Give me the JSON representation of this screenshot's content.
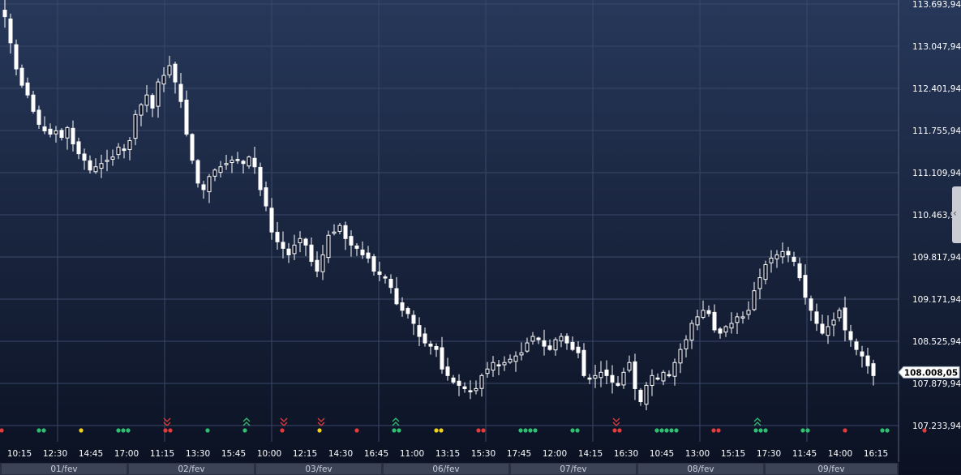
{
  "chart_data": {
    "type": "candlestick",
    "y_axis_labels": [
      "113.693,94",
      "113.047,94",
      "112.401,94",
      "111.755,94",
      "111.109,94",
      "110.463,94",
      "109.817,94",
      "109.171,94",
      "108.525,94",
      "107.879,94",
      "107.233,94"
    ],
    "ylim": [
      107.23394,
      113.69394
    ],
    "current_price": "108.008,05",
    "x_axis_labels": [
      "10:15",
      "12:30",
      "14:45",
      "17:00",
      "11:15",
      "13:30",
      "15:45",
      "10:00",
      "12:15",
      "14:30",
      "16:45",
      "11:00",
      "13:15",
      "15:30",
      "17:45",
      "12:00",
      "14:15",
      "16:30",
      "10:45",
      "13:00",
      "15:15",
      "17:30",
      "11:45",
      "14:00",
      "16:15"
    ],
    "date_labels": [
      "01/fev",
      "02/fev",
      "03/fev",
      "06/fev",
      "07/fev",
      "08/fev",
      "09/fev"
    ],
    "grid": true,
    "closes": [
      113.5,
      113.1,
      112.7,
      112.45,
      112.3,
      112.05,
      111.85,
      111.75,
      111.7,
      111.75,
      111.65,
      111.8,
      111.55,
      111.4,
      111.3,
      111.15,
      111.2,
      111.25,
      111.3,
      111.35,
      111.5,
      111.45,
      111.6,
      112.0,
      112.15,
      112.3,
      112.1,
      112.5,
      112.6,
      112.75,
      112.5,
      112.2,
      111.7,
      111.3,
      110.95,
      110.85,
      111.05,
      111.15,
      111.2,
      111.25,
      111.3,
      111.3,
      111.25,
      111.35,
      111.2,
      110.85,
      110.6,
      110.2,
      110.05,
      109.95,
      109.85,
      110.0,
      110.1,
      110.0,
      109.75,
      109.6,
      109.85,
      110.15,
      110.2,
      110.3,
      110.1,
      110.0,
      109.95,
      109.85,
      109.8,
      109.6,
      109.55,
      109.5,
      109.35,
      109.1,
      109.0,
      108.95,
      108.8,
      108.6,
      108.5,
      108.45,
      108.4,
      108.1,
      108.0,
      107.9,
      107.85,
      107.8,
      107.75,
      107.8,
      108.0,
      108.1,
      108.2,
      108.15,
      108.2,
      108.25,
      108.3,
      108.35,
      108.5,
      108.6,
      108.55,
      108.45,
      108.4,
      108.55,
      108.6,
      108.5,
      108.4,
      108.35,
      108.0,
      107.95,
      108.0,
      108.05,
      108.0,
      107.9,
      107.85,
      108.05,
      108.2,
      107.8,
      107.6,
      107.85,
      108.0,
      107.95,
      108.05,
      108.0,
      108.2,
      108.4,
      108.55,
      108.8,
      108.9,
      109.0,
      108.95,
      108.7,
      108.65,
      108.75,
      108.8,
      108.9,
      108.9,
      109.0,
      109.3,
      109.5,
      109.7,
      109.8,
      109.85,
      109.9,
      109.85,
      109.75,
      109.5,
      109.2,
      109.0,
      108.8,
      108.65,
      108.75,
      108.85,
      109.0,
      108.7,
      108.55,
      108.4,
      108.3,
      108.15,
      108.0
    ]
  },
  "signals": [
    {
      "color": "#e23b3b",
      "count": 1
    },
    {
      "color": "#2fbf71",
      "count": 2
    },
    {
      "color": "#f0d21b",
      "count": 1
    },
    {
      "color": "#2fbf71",
      "count": 3
    },
    {
      "color": "#e23b3b",
      "count": 2,
      "arrow": "down"
    },
    {
      "color": "#2fbf71",
      "count": 1
    },
    {
      "color": "#2fbf71",
      "count": 1,
      "arrow": "up"
    },
    {
      "color": "#e23b3b",
      "count": 1,
      "arrow": "down"
    },
    {
      "color": "#f0d21b",
      "count": 1,
      "arrow": "down"
    },
    {
      "color": "#e23b3b",
      "count": 1
    },
    {
      "color": "#2fbf71",
      "count": 2,
      "arrow": "up"
    },
    {
      "color": "#f0d21b",
      "count": 2
    },
    {
      "color": "#e23b3b",
      "count": 2
    },
    {
      "color": "#2fbf71",
      "count": 4
    },
    {
      "color": "#2fbf71",
      "count": 2
    },
    {
      "color": "#e23b3b",
      "count": 2,
      "arrow": "down"
    },
    {
      "color": "#2fbf71",
      "count": 5
    },
    {
      "color": "#e23b3b",
      "count": 2
    },
    {
      "color": "#2fbf71",
      "count": 3,
      "arrow": "up"
    },
    {
      "color": "#2fbf71",
      "count": 2
    },
    {
      "color": "#e23b3b",
      "count": 1
    },
    {
      "color": "#2fbf71",
      "count": 2
    },
    {
      "color": "#e23b3b",
      "count": 1
    }
  ],
  "colors": {
    "background_top": "#27385a",
    "background_bottom": "#0b1122",
    "grid": "#3a4868",
    "candle": "#ffffff",
    "signal_red": "#e23b3b",
    "signal_green": "#2fbf71",
    "signal_yellow": "#f0d21b"
  }
}
